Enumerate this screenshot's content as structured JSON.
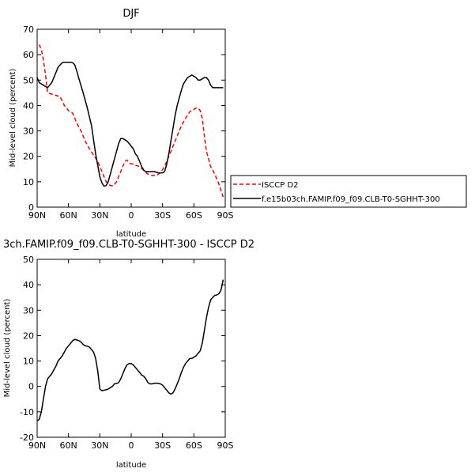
{
  "chart_data": [
    {
      "type": "line",
      "title": "DJF",
      "xlabel": "latitude",
      "ylabel": "Mid-level cloud (percent)",
      "xlim": [
        90,
        -90
      ],
      "ylim": [
        0,
        70
      ],
      "xticks": [
        90,
        60,
        30,
        0,
        -30,
        -60,
        -90
      ],
      "xtick_labels": [
        "90N",
        "60N",
        "30N",
        "0",
        "30S",
        "60S",
        "90S"
      ],
      "yticks": [
        0,
        10,
        20,
        30,
        40,
        50,
        60,
        70
      ],
      "ytick_labels": [
        "0",
        "10",
        "20",
        "30",
        "40",
        "50",
        "60",
        "70"
      ],
      "legend_placement": "outside-right",
      "series": [
        {
          "name": "ISCCP D2",
          "color": "#ff0000",
          "dash": "dashed",
          "x": [
            88,
            86,
            84,
            82,
            80,
            78,
            76,
            72,
            68,
            64,
            60,
            56,
            52,
            48,
            44,
            40,
            36,
            32,
            28,
            24,
            20,
            17,
            14,
            12,
            10,
            8,
            6,
            4,
            2,
            0,
            -2,
            -4,
            -8,
            -12,
            -16,
            -20,
            -24,
            -28,
            -32,
            -36,
            -40,
            -44,
            -48,
            -52,
            -56,
            -60,
            -62,
            -64,
            -66,
            -68,
            -70,
            -72,
            -76,
            -80,
            -84,
            -88
          ],
          "y": [
            64,
            62,
            58,
            52,
            45,
            44.7,
            44.5,
            44,
            43.5,
            40,
            38,
            37,
            33,
            30,
            26,
            23,
            20.5,
            18,
            14,
            10,
            8.5,
            8.5,
            10,
            12,
            14,
            16,
            18,
            18.5,
            17.5,
            17,
            17,
            16.5,
            16,
            14.5,
            13,
            12.5,
            12.5,
            13.5,
            16,
            20,
            24,
            28,
            32,
            35,
            37.5,
            38.5,
            39,
            39,
            38,
            35,
            28,
            22,
            16,
            13,
            9,
            4
          ]
        },
        {
          "name": "f.e15b03ch.FAMIP.f09_f09.CLB-T0-SGHHT-300",
          "color": "#000000",
          "dash": "solid",
          "x": [
            90,
            88,
            84,
            80,
            78,
            76,
            74,
            72,
            70,
            68,
            66,
            64,
            62,
            60,
            58,
            56,
            54,
            52,
            50,
            46,
            42,
            38,
            34,
            30,
            28,
            26,
            24,
            22,
            20,
            18,
            16,
            14,
            12,
            10,
            8,
            6,
            4,
            2,
            0,
            -2,
            -4,
            -6,
            -8,
            -10,
            -12,
            -14,
            -18,
            -22,
            -26,
            -30,
            -32,
            -34,
            -36,
            -38,
            -40,
            -42,
            -44,
            -46,
            -48,
            -50,
            -54,
            -58,
            -62,
            -64,
            -66,
            -68,
            -70,
            -72,
            -74,
            -76,
            -78,
            -80,
            -82,
            -84,
            -88
          ],
          "y": [
            51,
            49,
            48,
            47,
            48,
            49,
            51,
            53,
            55,
            56,
            56.8,
            57,
            57,
            57,
            57,
            56.8,
            56,
            53.5,
            50.5,
            45,
            39,
            32,
            21,
            12,
            9.5,
            8.3,
            8.5,
            10,
            13,
            16,
            19,
            22,
            25,
            27,
            27,
            26.5,
            26,
            25,
            24,
            23,
            21,
            20,
            18,
            16,
            14.5,
            14,
            14,
            14,
            13.5,
            13.5,
            14,
            17,
            21,
            26,
            31,
            36,
            40,
            43,
            46,
            48.5,
            51,
            52,
            51,
            50,
            50,
            50.5,
            51,
            51,
            50,
            48,
            47,
            47,
            47,
            47,
            47
          ]
        }
      ]
    },
    {
      "type": "line",
      "title": "3ch.FAMIP.f09_f09.CLB-T0-SGHHT-300 - ISCCP D2",
      "xlabel": "latitude",
      "ylabel": "Mid-level cloud (percent)",
      "xlim": [
        90,
        -90
      ],
      "ylim": [
        -20,
        50
      ],
      "xticks": [
        90,
        60,
        30,
        0,
        -30,
        -60,
        -90
      ],
      "xtick_labels": [
        "90N",
        "60N",
        "30N",
        "0",
        "30S",
        "60S",
        "90S"
      ],
      "yticks": [
        -20,
        -10,
        0,
        10,
        20,
        30,
        40,
        50
      ],
      "ytick_labels": [
        "-20",
        "-10",
        "0",
        "10",
        "20",
        "30",
        "40",
        "50"
      ],
      "series": [
        {
          "color": "#000000",
          "dash": "solid",
          "x": [
            90,
            88,
            86,
            84,
            82,
            80,
            78,
            76,
            72,
            70,
            68,
            66,
            64,
            62,
            60,
            58,
            56,
            54,
            52,
            50,
            48,
            46,
            44,
            42,
            40,
            38,
            36,
            34,
            32,
            30,
            28,
            26,
            24,
            22,
            20,
            18,
            16,
            14,
            12,
            10,
            8,
            6,
            4,
            2,
            0,
            -2,
            -4,
            -6,
            -8,
            -10,
            -12,
            -14,
            -16,
            -18,
            -20,
            -22,
            -24,
            -26,
            -28,
            -30,
            -32,
            -34,
            -36,
            -38,
            -40,
            -42,
            -44,
            -46,
            -48,
            -50,
            -52,
            -54,
            -56,
            -58,
            -60,
            -62,
            -64,
            -66,
            -68,
            -70,
            -72,
            -74,
            -76,
            -78,
            -80,
            -82,
            -84,
            -86,
            -88
          ],
          "y": [
            -13.5,
            -13,
            -10,
            -5,
            0,
            3,
            4,
            5,
            8,
            10,
            11,
            12,
            13.5,
            15,
            16,
            17,
            18,
            18.5,
            18.3,
            18,
            17.5,
            16.5,
            16,
            15.8,
            15.5,
            14.5,
            13.5,
            11,
            6,
            -1,
            -1.7,
            -1.5,
            -1.3,
            -1,
            -0.5,
            0,
            1,
            1.2,
            1.5,
            3,
            5,
            7,
            8.5,
            9,
            9,
            8.5,
            7.5,
            6.5,
            5.5,
            4.5,
            4,
            3,
            1.5,
            1,
            1,
            1.2,
            1.3,
            1.2,
            1,
            0.5,
            -0.5,
            -1.5,
            -2.5,
            -3,
            -2.5,
            -1,
            1,
            3,
            5.5,
            7.5,
            9,
            10,
            11,
            11,
            11.5,
            12,
            13,
            14,
            17,
            22,
            27,
            31,
            34,
            35,
            35.8,
            36,
            36.5,
            38,
            42
          ]
        }
      ]
    }
  ]
}
